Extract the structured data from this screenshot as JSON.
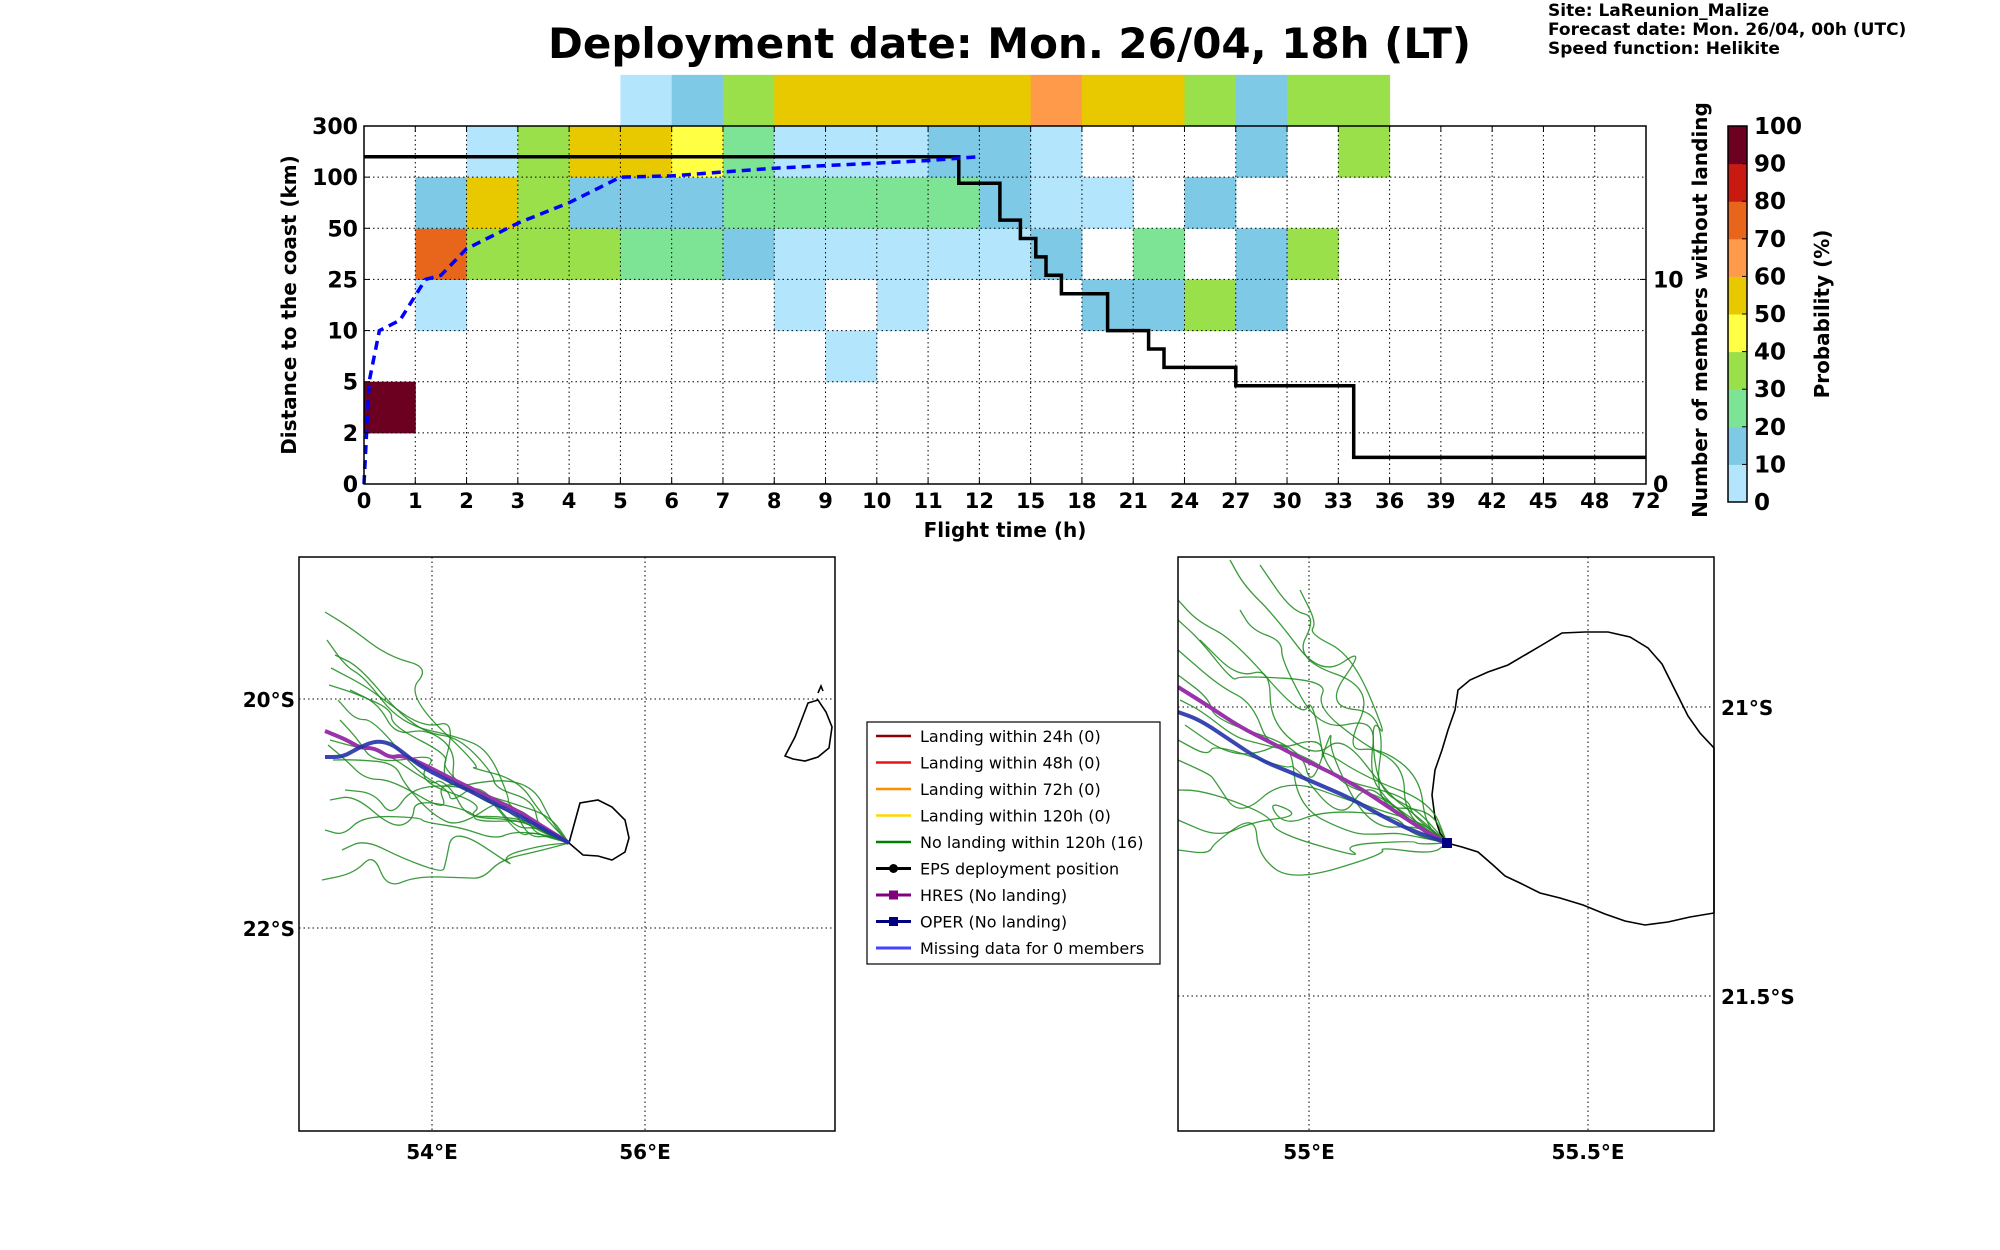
{
  "header": {
    "title": "Deployment date: Mon. 26/04, 18h (LT)",
    "site": "Site: LaReunion_Malize",
    "forecast_date": "Forecast date: Mon. 26/04, 00h (UTC)",
    "speed_function": "Speed function: Helikite"
  },
  "chart_data": [
    {
      "type": "heatmap",
      "id": "landing-probability",
      "xlabel": "Flight time (h)",
      "ylabel": "Distance to the coast (km)",
      "y2label": "Number of members without landing",
      "colorbar_label": "Probability (%)",
      "x_tick_labels": [
        "0",
        "1",
        "2",
        "3",
        "4",
        "5",
        "6",
        "7",
        "8",
        "9",
        "10",
        "11",
        "12",
        "15",
        "18",
        "21",
        "24",
        "27",
        "30",
        "33",
        "36",
        "39",
        "42",
        "45",
        "48",
        "72"
      ],
      "y_tick_labels": [
        "0",
        "2",
        "5",
        "10",
        "25",
        "50",
        "100",
        "300"
      ],
      "y2_tick_labels": [
        "0",
        "10"
      ],
      "y2_range": [
        0,
        17.5
      ],
      "colorbar_ticks": [
        "0",
        "10",
        "20",
        "30",
        "40",
        "50",
        "60",
        "70",
        "80",
        "90",
        "100"
      ],
      "colorbar_colors": [
        "#b3e5fc",
        "#7ecae6",
        "#7ee495",
        "#99e04a",
        "#ffff44",
        "#e8c900",
        "#ff9a4a",
        "#e8651c",
        "#c81a10",
        "#6b0020"
      ],
      "cells": [
        {
          "x": 0,
          "y": 1,
          "p": 100
        },
        {
          "x": 1,
          "y": 3,
          "p": 5
        },
        {
          "x": 1,
          "y": 4,
          "p": 75
        },
        {
          "x": 1,
          "y": 5,
          "p": 15
        },
        {
          "x": 2,
          "y": 4,
          "p": 35
        },
        {
          "x": 2,
          "y": 5,
          "p": 55
        },
        {
          "x": 2,
          "y": 6,
          "p": 5
        },
        {
          "x": 3,
          "y": 4,
          "p": 35
        },
        {
          "x": 3,
          "y": 5,
          "p": 35
        },
        {
          "x": 3,
          "y": 6,
          "p": 35
        },
        {
          "x": 4,
          "y": 4,
          "p": 35
        },
        {
          "x": 4,
          "y": 5,
          "p": 15
        },
        {
          "x": 4,
          "y": 6,
          "p": 55
        },
        {
          "x": 5,
          "y": 4,
          "p": 25
        },
        {
          "x": 5,
          "y": 5,
          "p": 15
        },
        {
          "x": 5,
          "y": 6,
          "p": 55
        },
        {
          "x": 5,
          "y": 7,
          "p": 5
        },
        {
          "x": 6,
          "y": 4,
          "p": 25
        },
        {
          "x": 6,
          "y": 5,
          "p": 15
        },
        {
          "x": 6,
          "y": 6,
          "p": 45
        },
        {
          "x": 6,
          "y": 7,
          "p": 15
        },
        {
          "x": 7,
          "y": 4,
          "p": 15
        },
        {
          "x": 7,
          "y": 5,
          "p": 25
        },
        {
          "x": 7,
          "y": 6,
          "p": 25
        },
        {
          "x": 7,
          "y": 7,
          "p": 35
        },
        {
          "x": 8,
          "y": 3,
          "p": 5
        },
        {
          "x": 8,
          "y": 4,
          "p": 5
        },
        {
          "x": 8,
          "y": 5,
          "p": 25
        },
        {
          "x": 8,
          "y": 6,
          "p": 5
        },
        {
          "x": 8,
          "y": 7,
          "p": 55
        },
        {
          "x": 9,
          "y": 2,
          "p": 5
        },
        {
          "x": 9,
          "y": 4,
          "p": 5
        },
        {
          "x": 9,
          "y": 5,
          "p": 25
        },
        {
          "x": 9,
          "y": 6,
          "p": 5
        },
        {
          "x": 9,
          "y": 7,
          "p": 55
        },
        {
          "x": 10,
          "y": 3,
          "p": 5
        },
        {
          "x": 10,
          "y": 4,
          "p": 5
        },
        {
          "x": 10,
          "y": 5,
          "p": 25
        },
        {
          "x": 10,
          "y": 6,
          "p": 5
        },
        {
          "x": 10,
          "y": 7,
          "p": 55
        },
        {
          "x": 11,
          "y": 4,
          "p": 5
        },
        {
          "x": 11,
          "y": 5,
          "p": 25
        },
        {
          "x": 11,
          "y": 6,
          "p": 15
        },
        {
          "x": 11,
          "y": 7,
          "p": 55
        },
        {
          "x": 12,
          "y": 4,
          "p": 5
        },
        {
          "x": 12,
          "y": 5,
          "p": 15
        },
        {
          "x": 12,
          "y": 6,
          "p": 15
        },
        {
          "x": 12,
          "y": 7,
          "p": 55
        },
        {
          "x": 13,
          "y": 4,
          "p": 15
        },
        {
          "x": 13,
          "y": 5,
          "p": 5
        },
        {
          "x": 13,
          "y": 6,
          "p": 5
        },
        {
          "x": 13,
          "y": 7,
          "p": 65
        },
        {
          "x": 14,
          "y": 3,
          "p": 15
        },
        {
          "x": 14,
          "y": 5,
          "p": 5
        },
        {
          "x": 14,
          "y": 7,
          "p": 55
        },
        {
          "x": 15,
          "y": 3,
          "p": 15
        },
        {
          "x": 15,
          "y": 4,
          "p": 25
        },
        {
          "x": 15,
          "y": 7,
          "p": 55
        },
        {
          "x": 16,
          "y": 3,
          "p": 35
        },
        {
          "x": 16,
          "y": 5,
          "p": 15
        },
        {
          "x": 16,
          "y": 7,
          "p": 35
        },
        {
          "x": 17,
          "y": 3,
          "p": 15
        },
        {
          "x": 17,
          "y": 4,
          "p": 15
        },
        {
          "x": 17,
          "y": 6,
          "p": 15
        },
        {
          "x": 17,
          "y": 7,
          "p": 15
        },
        {
          "x": 18,
          "y": 4,
          "p": 35
        },
        {
          "x": 18,
          "y": 7,
          "p": 35
        },
        {
          "x": 19,
          "y": 6,
          "p": 35
        },
        {
          "x": 19,
          "y": 7,
          "p": 35
        }
      ],
      "no_landing_members_step": [
        [
          0,
          16
        ],
        [
          11.6,
          16
        ],
        [
          11.6,
          14.7
        ],
        [
          12.4,
          14.7
        ],
        [
          12.4,
          12.9
        ],
        [
          12.8,
          12.9
        ],
        [
          12.8,
          12
        ],
        [
          13.1,
          12
        ],
        [
          13.1,
          11.1
        ],
        [
          13.3,
          11.1
        ],
        [
          13.3,
          10.2
        ],
        [
          13.6,
          10.2
        ],
        [
          13.6,
          9.3
        ],
        [
          14.5,
          9.3
        ],
        [
          14.5,
          7.5
        ],
        [
          15.3,
          7.5
        ],
        [
          15.3,
          6.6
        ],
        [
          15.6,
          6.6
        ],
        [
          15.6,
          5.7
        ],
        [
          17,
          5.7
        ],
        [
          17,
          4.8
        ],
        [
          19.3,
          4.8
        ],
        [
          19.3,
          1.3
        ],
        [
          25,
          1.3
        ]
      ],
      "cumulative_distance_curve": [
        [
          0,
          0
        ],
        [
          0.05,
          2
        ],
        [
          0.1,
          5
        ],
        [
          0.3,
          10
        ],
        [
          0.7,
          13
        ],
        [
          1.2,
          25
        ],
        [
          1.5,
          27
        ],
        [
          2,
          40
        ],
        [
          2.4,
          45
        ],
        [
          3,
          55
        ],
        [
          3.5,
          65
        ],
        [
          4,
          75
        ],
        [
          4.6,
          90
        ],
        [
          5,
          100
        ],
        [
          6,
          105
        ],
        [
          7,
          120
        ],
        [
          8,
          135
        ],
        [
          9,
          145
        ],
        [
          10,
          155
        ],
        [
          11,
          165
        ],
        [
          12,
          180
        ]
      ]
    },
    {
      "type": "map",
      "id": "map-overview",
      "lat_labels": [
        "20°S",
        "22°S"
      ],
      "lon_labels": [
        "54°E",
        "56°E"
      ]
    },
    {
      "type": "map",
      "id": "map-zoom",
      "lat_labels": [
        "21°S",
        "21.5°S"
      ],
      "lon_labels": [
        "55°E",
        "55.5°E"
      ]
    }
  ],
  "legend": {
    "items": [
      {
        "label": "Landing within 24h (0)",
        "color": "#8b0000",
        "marker": "none"
      },
      {
        "label": "Landing within 48h (0)",
        "color": "#ee1111",
        "marker": "none"
      },
      {
        "label": "Landing within 72h (0)",
        "color": "#ff8c00",
        "marker": "none"
      },
      {
        "label": "Landing within 120h (0)",
        "color": "#ffd700",
        "marker": "none"
      },
      {
        "label": "No landing within 120h (16)",
        "color": "#008000",
        "marker": "none"
      },
      {
        "label": "EPS deployment position",
        "color": "#000000",
        "marker": "circle"
      },
      {
        "label": "HRES (No landing)",
        "color": "#800080",
        "marker": "square"
      },
      {
        "label": "OPER (No landing)",
        "color": "#000080",
        "marker": "square"
      },
      {
        "label": "Missing data for 0 members",
        "color": "#4444ff",
        "marker": "none"
      }
    ]
  }
}
